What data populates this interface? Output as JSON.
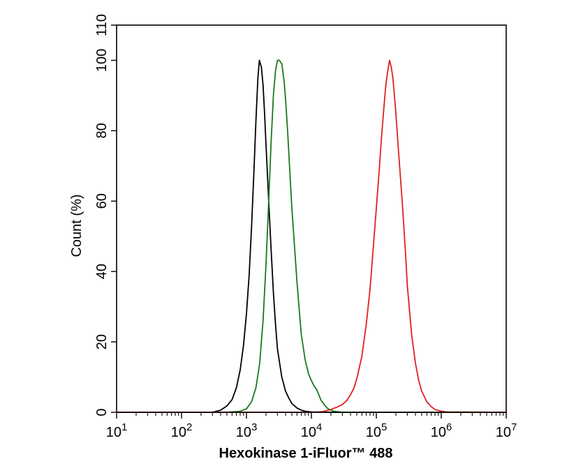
{
  "chart_data": {
    "type": "line",
    "xlabel": "Hexokinase 1-iFluor™ 488",
    "ylabel": "Count  (%)",
    "xscale": "log",
    "xlim": [
      10,
      10000000
    ],
    "ylim": [
      0,
      110
    ],
    "grid": false,
    "legend": "none",
    "x_ticks": [
      {
        "base": "10",
        "exp": "1"
      },
      {
        "base": "10",
        "exp": "2"
      },
      {
        "base": "10",
        "exp": "3"
      },
      {
        "base": "10",
        "exp": "4"
      },
      {
        "base": "10",
        "exp": "5"
      },
      {
        "base": "10",
        "exp": "6"
      },
      {
        "base": "10",
        "exp": "7"
      }
    ],
    "y_ticks": [
      "0",
      "20",
      "40",
      "60",
      "80",
      "100",
      "110"
    ],
    "series": [
      {
        "color": "#000000",
        "x": [
          10,
          100,
          300,
          400,
          500,
          600,
          700,
          800,
          900,
          1000,
          1100,
          1200,
          1300,
          1400,
          1500,
          1580,
          1700,
          1800,
          1900,
          2000,
          2200,
          2400,
          2600,
          2800,
          3000,
          3500,
          4000,
          4500,
          5000,
          6000,
          7000,
          8000,
          10000,
          15000,
          10000000
        ],
        "y": [
          0,
          0,
          0,
          0.6,
          1.8,
          3.6,
          7,
          12,
          19,
          28,
          39,
          53,
          68,
          83,
          95,
          100,
          98,
          93,
          85,
          76,
          60,
          46,
          34,
          25,
          18,
          10,
          6,
          4,
          2.5,
          1.2,
          0.6,
          0.3,
          0.1,
          0,
          0
        ]
      },
      {
        "color": "#1a7a1a",
        "x": [
          10,
          100,
          500,
          800,
          1000,
          1200,
          1400,
          1600,
          1800,
          2000,
          2200,
          2400,
          2600,
          2800,
          3000,
          3200,
          3500,
          3800,
          4000,
          4300,
          4600,
          5000,
          5500,
          6000,
          6500,
          7000,
          8000,
          9000,
          10000,
          11000,
          12000,
          13000,
          14000,
          16000,
          18000,
          22000,
          30000,
          10000000
        ],
        "y": [
          0,
          0,
          0,
          0.3,
          1,
          3,
          7,
          14,
          26,
          42,
          60,
          77,
          90,
          97,
          100,
          100,
          99,
          94,
          89,
          80,
          70,
          58,
          47,
          37,
          29,
          22,
          15,
          11,
          9,
          7.5,
          6.5,
          5,
          3.5,
          2,
          1,
          0.3,
          0,
          0
        ]
      },
      {
        "color": "#e02020",
        "x": [
          10,
          10000,
          15000,
          20000,
          25000,
          30000,
          35000,
          40000,
          45000,
          50000,
          60000,
          70000,
          80000,
          90000,
          100000,
          110000,
          120000,
          130000,
          140000,
          150000,
          160000,
          170000,
          180000,
          200000,
          220000,
          250000,
          280000,
          300000,
          350000,
          400000,
          450000,
          500000,
          600000,
          700000,
          800000,
          1000000,
          1200000,
          10000000
        ],
        "y": [
          0,
          0,
          0.2,
          0.8,
          1.5,
          2.2,
          3.3,
          5,
          6.8,
          9.5,
          16,
          25,
          35,
          47,
          58,
          68,
          78,
          86,
          93,
          97,
          100,
          98,
          95,
          85,
          74,
          60,
          46,
          36,
          22,
          14,
          9,
          6,
          3,
          1.6,
          0.8,
          0.3,
          0.1,
          0
        ]
      }
    ]
  }
}
